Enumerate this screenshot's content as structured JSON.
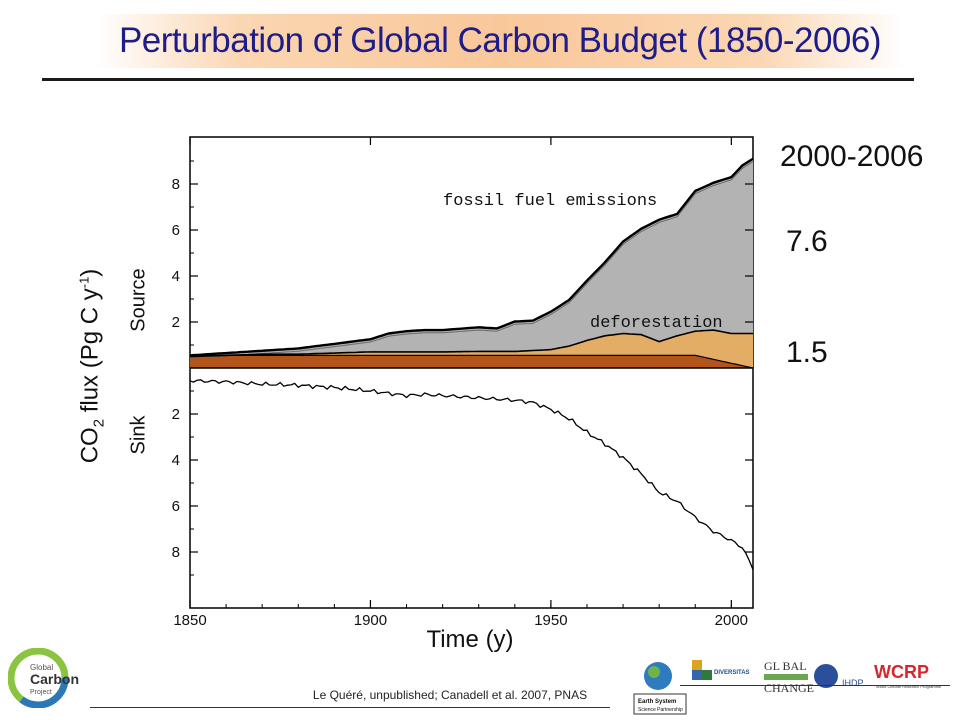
{
  "slide": {
    "title": "Perturbation of Global Carbon Budget (1850-2006)",
    "period_label": "2000-2006",
    "fossil_value": "7.6",
    "deforestation_value": "1.5",
    "citation": "Le Quéré, unpublished; Canadell et al. 2007, PNAS"
  },
  "chart_data": {
    "type": "area",
    "xlabel": "Time (y)",
    "ylabel_main": "CO",
    "ylabel_sub": "2",
    "ylabel_mid": " flux (Pg C y",
    "ylabel_sup": "-1",
    "ylabel_end": ")",
    "ylabel_source": "Source",
    "ylabel_sink": "Sink",
    "xlim": [
      1850,
      2006
    ],
    "source_ylim": [
      0,
      10
    ],
    "sink_ylim": [
      0,
      -10
    ],
    "x_ticks": [
      1850,
      1900,
      1950,
      2000
    ],
    "y_ticks_source": [
      2,
      4,
      6,
      8
    ],
    "y_ticks_sink": [
      2,
      4,
      6,
      8
    ],
    "annotations": {
      "fossil": "fossil fuel emissions",
      "deforestation": "deforestation"
    },
    "colors": {
      "fossil": "#b3b3b3",
      "deforestation_light": "#e3ad66",
      "deforestation_dark": "#b3541a",
      "line": "#000000",
      "sink_line": "#000000"
    },
    "series": [
      {
        "name": "deforestation",
        "x": [
          1850,
          1860,
          1870,
          1880,
          1890,
          1900,
          1910,
          1920,
          1930,
          1940,
          1950,
          1955,
          1960,
          1965,
          1970,
          1975,
          1980,
          1985,
          1990,
          1995,
          2000,
          2006
        ],
        "values": [
          0.5,
          0.55,
          0.6,
          0.6,
          0.65,
          0.7,
          0.7,
          0.7,
          0.72,
          0.72,
          0.8,
          0.95,
          1.2,
          1.4,
          1.5,
          1.45,
          1.15,
          1.4,
          1.6,
          1.65,
          1.5,
          1.5
        ]
      },
      {
        "name": "fossil fuel emissions",
        "x": [
          1850,
          1860,
          1870,
          1880,
          1890,
          1900,
          1905,
          1910,
          1915,
          1920,
          1925,
          1930,
          1935,
          1940,
          1945,
          1950,
          1955,
          1960,
          1965,
          1970,
          1975,
          1980,
          1985,
          1990,
          1995,
          2000,
          2003,
          2006
        ],
        "values": [
          0.05,
          0.1,
          0.15,
          0.25,
          0.4,
          0.55,
          0.8,
          0.9,
          0.95,
          0.95,
          1.0,
          1.05,
          1.0,
          1.3,
          1.3,
          1.65,
          2.0,
          2.6,
          3.2,
          4.0,
          4.6,
          5.3,
          5.3,
          6.1,
          6.4,
          6.8,
          7.3,
          7.6
        ]
      },
      {
        "name": "sink",
        "x": [
          1850,
          1860,
          1870,
          1880,
          1890,
          1900,
          1905,
          1910,
          1915,
          1920,
          1925,
          1930,
          1935,
          1940,
          1945,
          1950,
          1955,
          1960,
          1965,
          1970,
          1975,
          1980,
          1985,
          1990,
          1995,
          2000,
          2003,
          2006
        ],
        "values": [
          -0.55,
          -0.6,
          -0.7,
          -0.75,
          -0.85,
          -1.0,
          -1.1,
          -1.2,
          -1.15,
          -1.2,
          -1.25,
          -1.3,
          -1.35,
          -1.4,
          -1.5,
          -1.8,
          -2.2,
          -2.8,
          -3.3,
          -3.9,
          -4.6,
          -5.4,
          -5.8,
          -6.5,
          -7.1,
          -7.5,
          -7.8,
          -8.7
        ]
      }
    ]
  }
}
